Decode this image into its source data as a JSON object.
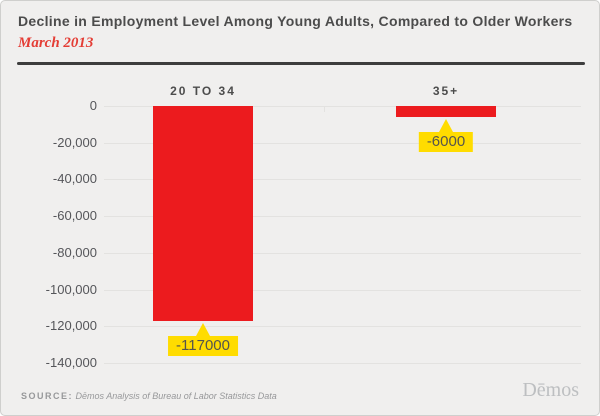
{
  "header": {
    "title": "Decline in Employment Level Among Young Adults, Compared to Older Workers",
    "subtitle": "March 2013"
  },
  "chart_data": {
    "type": "bar",
    "categories": [
      "20 TO 34",
      "35+"
    ],
    "values": [
      -117000,
      -6000
    ],
    "data_labels": [
      "-117000",
      "-6000"
    ],
    "title": "Decline in Employment Level Among Young Adults, Compared to Older Workers",
    "subtitle": "March 2013",
    "xlabel": "",
    "ylabel": "",
    "ylim": [
      -140000,
      0
    ],
    "ytick_step": 20000,
    "ytick_labels": [
      "0",
      "-20,000",
      "-40,000",
      "-60,000",
      "-80,000",
      "-100,000",
      "-120,000",
      "-140,000"
    ],
    "grid": true,
    "legend": "none",
    "bar_color": "#ec1b1e",
    "data_label_bg": "#ffdc00"
  },
  "footer": {
    "source_prefix": "SOURCE:",
    "source_text": "Dēmos Analysis of Bureau of Labor Statistics Data",
    "logo": "Dēmos"
  },
  "colors": {
    "background": "#f0efee",
    "bar": "#ec1b1e",
    "callout": "#ffdc00",
    "title": "#4c4c4c",
    "subtitle": "#e43d35",
    "axis_text": "#55565a",
    "gridline": "#e3e2e0",
    "divider": "#3d3d3d",
    "source": "#97989a",
    "logo": "#bdbfc1"
  }
}
